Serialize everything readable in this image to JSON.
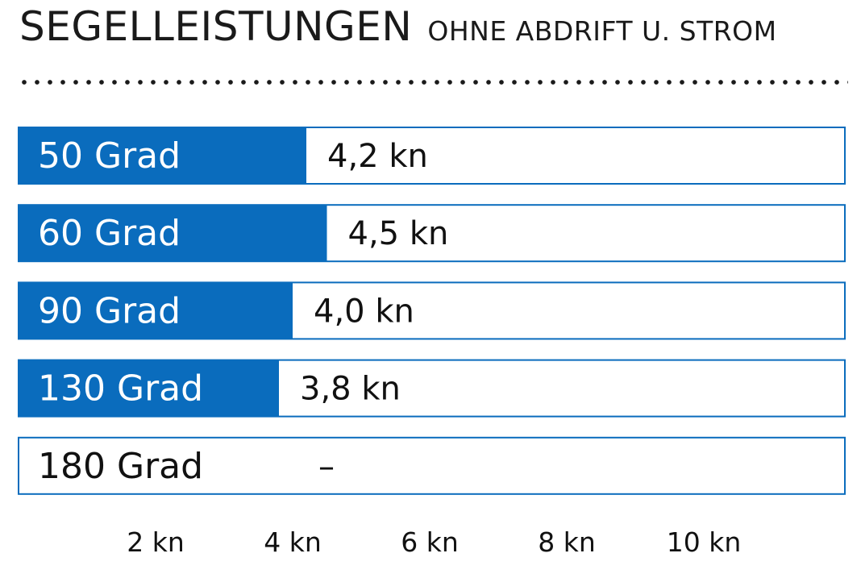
{
  "header": {
    "title": "SEGELLEISTUNGEN",
    "subtitle": "OHNE ABDRIFT U. STROM"
  },
  "colors": {
    "bar": "#0a6cbd",
    "track_border": "#0a6cbd",
    "label_on_bar": "#ffffff",
    "label_off_bar": "#111111"
  },
  "chart_data": {
    "type": "bar",
    "orientation": "horizontal",
    "categories": [
      "50 Grad",
      "60 Grad",
      "90 Grad",
      "130 Grad",
      "180 Grad"
    ],
    "values": [
      4.2,
      4.5,
      4.0,
      3.8,
      null
    ],
    "value_labels": [
      "4,2 kn",
      "4,5 kn",
      "4,0 kn",
      "3,8 kn",
      "–"
    ],
    "x_ticks": [
      2,
      4,
      6,
      8,
      10
    ],
    "x_tick_labels": [
      "2 kn",
      "4 kn",
      "6 kn",
      "8 kn",
      "10 kn"
    ],
    "unit": "kn",
    "xlim": [
      0,
      12
    ],
    "grid": false,
    "legend": "none"
  }
}
